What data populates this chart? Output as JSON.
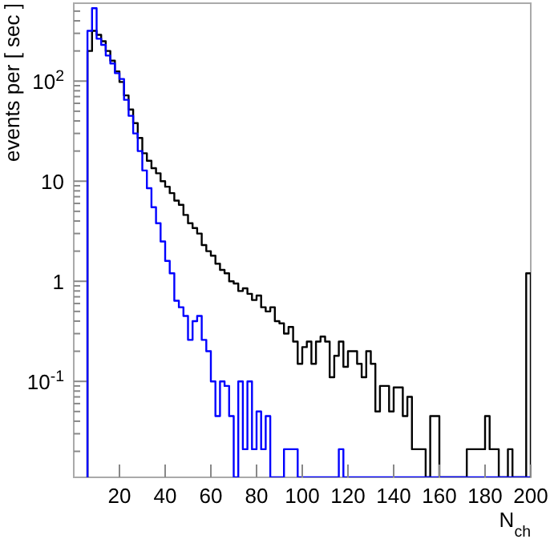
{
  "chart_data": {
    "type": "histogram",
    "xlabel": "N$_{ch}$",
    "ylabel": "events per [ sec ]",
    "log": "y",
    "xlim": [
      0,
      200
    ],
    "ylim": [
      0.011,
      600
    ],
    "xticks": [
      20,
      40,
      60,
      80,
      100,
      120,
      140,
      160,
      180,
      200
    ],
    "yticks": [
      {
        "value": 0.02,
        "label": null
      },
      {
        "value": 0.03,
        "label": null
      },
      {
        "value": 0.04,
        "label": null
      },
      {
        "value": 0.05,
        "label": null
      },
      {
        "value": 0.06,
        "label": null
      },
      {
        "value": 0.07,
        "label": null
      },
      {
        "value": 0.08,
        "label": null
      },
      {
        "value": 0.09,
        "label": null
      },
      {
        "value": 0.1,
        "label": "10$^{-1}$"
      },
      {
        "value": 0.2,
        "label": null
      },
      {
        "value": 0.3,
        "label": null
      },
      {
        "value": 0.4,
        "label": null
      },
      {
        "value": 0.5,
        "label": null
      },
      {
        "value": 0.6,
        "label": null
      },
      {
        "value": 0.7,
        "label": null
      },
      {
        "value": 0.8,
        "label": null
      },
      {
        "value": 0.9,
        "label": null
      },
      1,
      {
        "value": 2,
        "label": null
      },
      {
        "value": 3,
        "label": null
      },
      {
        "value": 4,
        "label": null
      },
      {
        "value": 5,
        "label": null
      },
      {
        "value": 6,
        "label": null
      },
      {
        "value": 7,
        "label": null
      },
      {
        "value": 8,
        "label": null
      },
      {
        "value": 9,
        "label": null
      },
      10,
      {
        "value": 20,
        "label": null
      },
      {
        "value": 30,
        "label": null
      },
      {
        "value": 40,
        "label": null
      },
      {
        "value": 50,
        "label": null
      },
      {
        "value": 60,
        "label": null
      },
      {
        "value": 70,
        "label": null
      },
      {
        "value": 80,
        "label": null
      },
      {
        "value": 90,
        "label": null
      },
      {
        "value": 100,
        "label": "10$^{2}$"
      },
      {
        "value": 200,
        "label": null
      },
      {
        "value": 300,
        "label": null
      },
      {
        "value": 400,
        "label": null
      },
      {
        "value": 500,
        "label": null
      }
    ],
    "bins": [
      6,
      8,
      10,
      12,
      14,
      16,
      18,
      20,
      22,
      24,
      26,
      28,
      30,
      32,
      34,
      36,
      38,
      40,
      42,
      44,
      46,
      48,
      50,
      52,
      54,
      56,
      58,
      60,
      62,
      64,
      66,
      68,
      70,
      72,
      74,
      76,
      78,
      80,
      82,
      84,
      86,
      88,
      90,
      92,
      94,
      96,
      98,
      100,
      102,
      104,
      106,
      108,
      110,
      112,
      114,
      116,
      118,
      120,
      122,
      124,
      126,
      128,
      130,
      132,
      134,
      136,
      138,
      140,
      142,
      144,
      146,
      148,
      150,
      152,
      154,
      156,
      158,
      160,
      162,
      164,
      166,
      168,
      170,
      172,
      174,
      176,
      178,
      180,
      182,
      184,
      186,
      188,
      190,
      192,
      194,
      196,
      198,
      200
    ],
    "series": [
      {
        "color": "#000000",
        "values": [
          200,
          318,
          290,
          250,
          200,
          160,
          125,
          98,
          72,
          52,
          38,
          27,
          19,
          16,
          13.5,
          12,
          10,
          8.8,
          7.6,
          6.4,
          5.8,
          4.6,
          3.8,
          3.4,
          3.0,
          2.3,
          2.0,
          1.8,
          1.5,
          1.3,
          1.2,
          1.0,
          0.95,
          0.8,
          0.85,
          0.75,
          0.65,
          0.72,
          0.55,
          0.5,
          0.55,
          0.4,
          0.38,
          0.3,
          0.35,
          0.25,
          0.15,
          0.22,
          0.25,
          0.15,
          0.25,
          0.28,
          0.25,
          0.11,
          0.18,
          0.25,
          0.14,
          0.2,
          0.2,
          0.15,
          0.11,
          0.2,
          0.15,
          0.05,
          0.09,
          0.09,
          0.05,
          0.087,
          0.087,
          0.045,
          0.07,
          0.021,
          0.021,
          0.021,
          null,
          0.045,
          0.045,
          null,
          null,
          null,
          null,
          null,
          null,
          0.021,
          0.021,
          0.021,
          0.021,
          0.045,
          0.021,
          0.021,
          null,
          null,
          0.021,
          null,
          null,
          null,
          1.2
        ]
      },
      {
        "color": "#0000ff",
        "values": [
          318,
          535,
          265,
          230,
          180,
          150,
          120,
          105,
          65,
          45,
          30,
          20,
          12.8,
          8.5,
          5.5,
          3.8,
          2.5,
          1.6,
          1.2,
          0.64,
          0.55,
          0.45,
          0.26,
          0.4,
          0.45,
          0.26,
          0.2,
          0.1,
          0.045,
          0.1,
          0.09,
          0.045,
          null,
          0.1,
          0.021,
          0.1,
          0.021,
          0.05,
          0.021,
          0.045,
          null,
          null,
          null,
          0.021,
          0.021,
          0.021,
          null,
          null,
          null,
          null,
          null,
          null,
          null,
          null,
          null,
          0.021,
          null,
          null,
          null,
          null,
          null,
          null,
          null,
          null,
          null,
          null,
          null,
          null,
          null,
          null,
          null,
          null,
          null,
          null,
          null,
          null,
          null,
          null,
          null,
          null,
          null,
          null,
          null,
          null,
          null,
          null,
          null,
          null,
          null,
          null,
          null,
          null,
          null,
          null,
          null,
          null,
          null
        ]
      }
    ]
  }
}
